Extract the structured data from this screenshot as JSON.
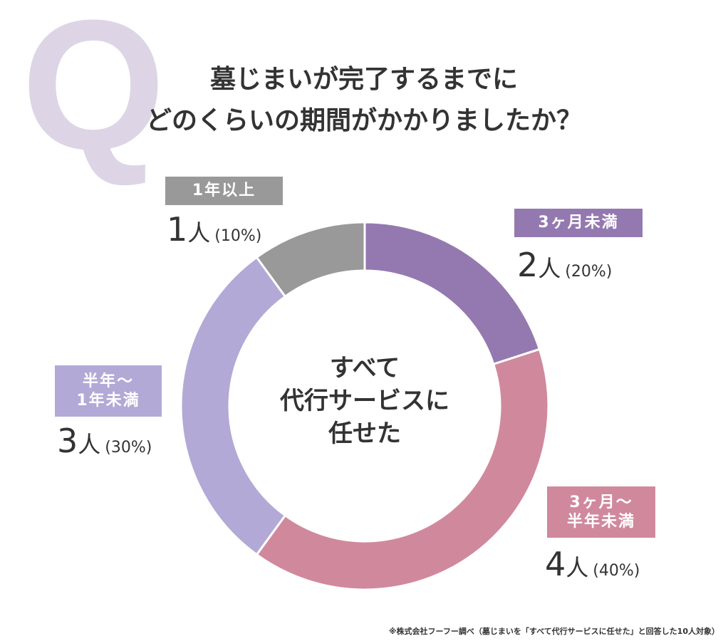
{
  "header": {
    "question_mark": "Q",
    "title_line1": "墓じまいが完了するまでに",
    "title_line2": "どのくらいの期間がかかりましたか？"
  },
  "chart_data": {
    "type": "pie",
    "donut": true,
    "center_label": [
      "すべて",
      "代行サービスに",
      "任せた"
    ],
    "unit": "人",
    "slices": [
      {
        "label": "3ヶ月未満",
        "count": 2,
        "percent": "(20%)",
        "value": 20,
        "color": "#9479b0"
      },
      {
        "label": "3ヶ月〜\n半年未満",
        "count": 4,
        "percent": "(40%)",
        "value": 40,
        "color": "#d0899c"
      },
      {
        "label": "半年〜\n1年未満",
        "count": 3,
        "percent": "(30%)",
        "value": 30,
        "color": "#b3a9d6"
      },
      {
        "label": "1年以上",
        "count": 1,
        "percent": "(10%)",
        "value": 10,
        "color": "#999999"
      }
    ]
  },
  "footnote": "※株式会社フーフー調べ（墓じまいを「すべて代行サービスに任せた」と回答した10人対象）"
}
